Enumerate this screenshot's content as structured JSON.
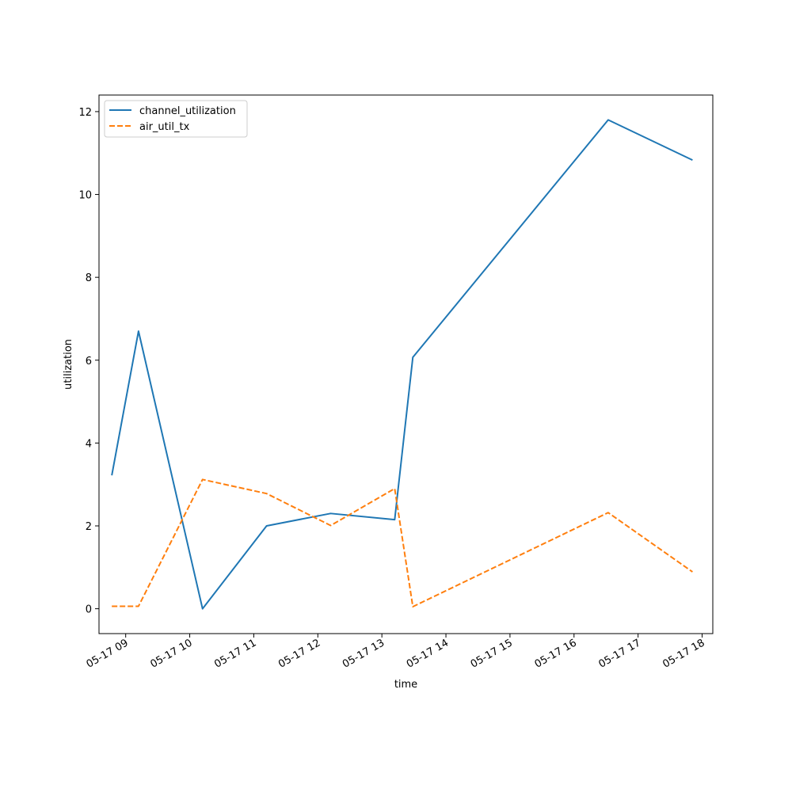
{
  "chart_data": {
    "type": "line",
    "title": "",
    "xlabel": "time",
    "ylabel": "utilization",
    "x_axis_type": "datetime",
    "xlim": [
      "2024-05-17 08:35",
      "2024-05-17 18:10"
    ],
    "ylim": [
      -0.6,
      12.4
    ],
    "grid": false,
    "legend_position": "top-left",
    "x_ticks": [
      {
        "value": "2024-05-17 09:00",
        "label": "05-17 09"
      },
      {
        "value": "2024-05-17 10:00",
        "label": "05-17 10"
      },
      {
        "value": "2024-05-17 11:00",
        "label": "05-17 11"
      },
      {
        "value": "2024-05-17 12:00",
        "label": "05-17 12"
      },
      {
        "value": "2024-05-17 13:00",
        "label": "05-17 13"
      },
      {
        "value": "2024-05-17 14:00",
        "label": "05-17 14"
      },
      {
        "value": "2024-05-17 15:00",
        "label": "05-17 15"
      },
      {
        "value": "2024-05-17 16:00",
        "label": "05-17 16"
      },
      {
        "value": "2024-05-17 17:00",
        "label": "05-17 17"
      },
      {
        "value": "2024-05-17 18:00",
        "label": "05-17 18"
      }
    ],
    "y_ticks": [
      {
        "value": 0,
        "label": "0"
      },
      {
        "value": 2,
        "label": "2"
      },
      {
        "value": 4,
        "label": "4"
      },
      {
        "value": 6,
        "label": "6"
      },
      {
        "value": 8,
        "label": "8"
      },
      {
        "value": 10,
        "label": "10"
      },
      {
        "value": 12,
        "label": "12"
      }
    ],
    "x": [
      "2024-05-17 08:47",
      "2024-05-17 09:12",
      "2024-05-17 10:12",
      "2024-05-17 11:12",
      "2024-05-17 12:12",
      "2024-05-17 13:12",
      "2024-05-17 13:29",
      "2024-05-17 16:32",
      "2024-05-17 17:51"
    ],
    "series": [
      {
        "name": "channel_utilization",
        "color": "#1f77b4",
        "line_style": "solid",
        "values": [
          3.22,
          6.7,
          0.0,
          2.0,
          2.3,
          2.15,
          6.07,
          11.8,
          10.83
        ]
      },
      {
        "name": "air_util_tx",
        "color": "#ff7f0e",
        "line_style": "dashed",
        "values": [
          0.06,
          0.06,
          3.12,
          2.78,
          2.01,
          2.9,
          0.05,
          2.32,
          0.89
        ]
      }
    ]
  }
}
